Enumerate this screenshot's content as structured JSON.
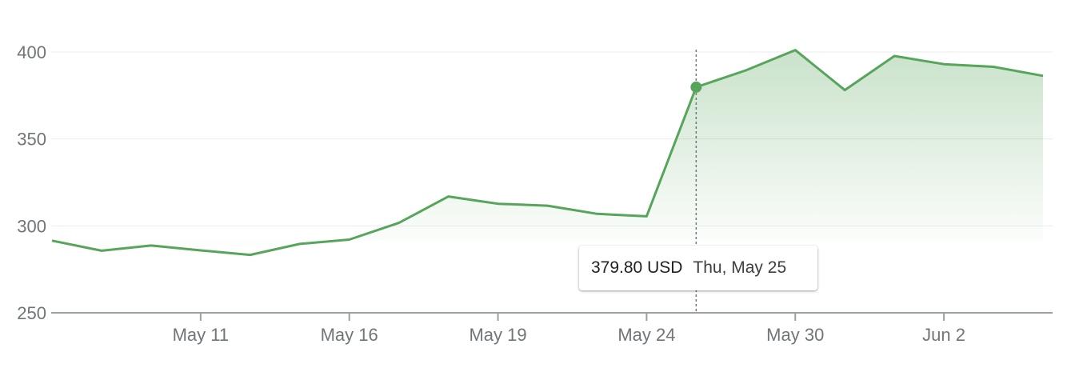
{
  "chart_data": {
    "type": "area",
    "y_ticks": [
      "400",
      "350",
      "300",
      "250"
    ],
    "ylim": [
      250,
      400
    ],
    "x_ticks": [
      "May 11",
      "May 16",
      "May 19",
      "May 24",
      "May 30",
      "Jun 2"
    ],
    "x_tick_index": [
      3,
      6,
      9,
      12,
      15,
      18
    ],
    "values": [
      291.5,
      285.7,
      288.7,
      285.9,
      283.3,
      289.6,
      292.1,
      301.7,
      316.9,
      312.7,
      311.6,
      306.9,
      305.5,
      379.8,
      389.4,
      401.1,
      378.1,
      397.7,
      393.0,
      391.5,
      386.3
    ],
    "highlight_index": 13,
    "line_color": "#57a55a",
    "grid": true,
    "tooltip": {
      "price": "379.80 USD",
      "date": "Thu, May 25"
    }
  }
}
